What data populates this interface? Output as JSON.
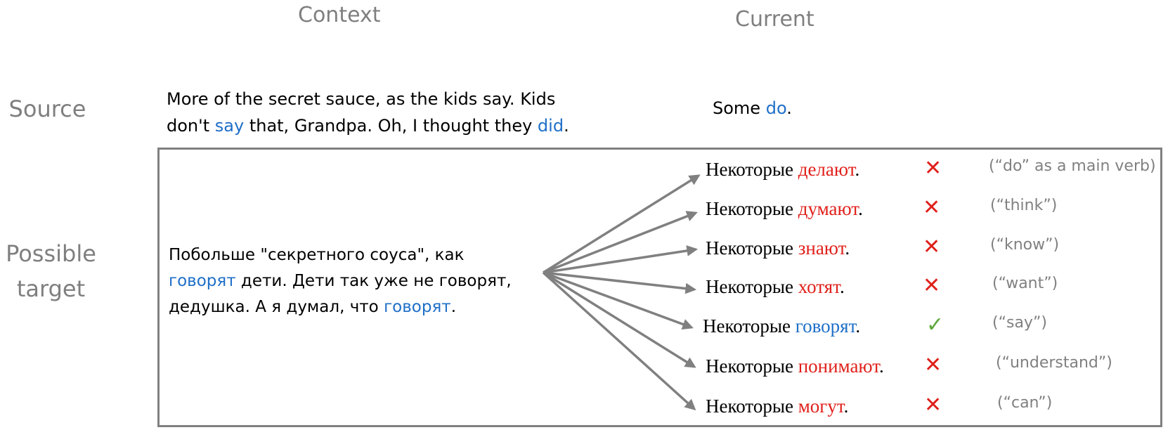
{
  "headers": {
    "context": "Context",
    "current": "Current"
  },
  "rows": {
    "source": "Source",
    "target_line1": "Possible",
    "target_line2": "target"
  },
  "source": {
    "context_line1": "More of the secret sauce, as the kids say. Kids",
    "context_line2_a": "don't ",
    "context_line2_say": "say",
    "context_line2_b": " that, Grandpa. Oh, I thought they ",
    "context_line2_did": "did",
    "context_line2_c": ".",
    "current_a": "Some ",
    "current_do": "do",
    "current_b": "."
  },
  "target_context": {
    "line1": "Побольше \"секретного соуса\", как",
    "line2_blue": "говорят",
    "line2_rest": " дети. Дети так уже не говорят,",
    "line3_a": "дедушка. А я думал, что ",
    "line3_blue": "говорят",
    "line3_b": "."
  },
  "candidates": [
    {
      "prefix": "Некоторые ",
      "verb": "делают",
      "suffix": ".",
      "correct": false,
      "mark": "✕",
      "gloss": "(“do” as a main verb)"
    },
    {
      "prefix": "Некоторые ",
      "verb": "думают",
      "suffix": ".",
      "correct": false,
      "mark": "✕",
      "gloss": "(“think”)"
    },
    {
      "prefix": "Некоторые ",
      "verb": "знают",
      "suffix": ".",
      "correct": false,
      "mark": "✕",
      "gloss": "(“know”)"
    },
    {
      "prefix": "Некоторые ",
      "verb": "хотят",
      "suffix": ".",
      "correct": false,
      "mark": "✕",
      "gloss": "(“want”)"
    },
    {
      "prefix": "Некоторые ",
      "verb": "говорят",
      "suffix": ".",
      "correct": true,
      "mark": "✓",
      "gloss": "(“say”)"
    },
    {
      "prefix": "Некоторые ",
      "verb": "понимают",
      "suffix": ".",
      "correct": false,
      "mark": "✕",
      "gloss": "(“understand”)"
    },
    {
      "prefix": "Некоторые ",
      "verb": "могут",
      "suffix": ".",
      "correct": false,
      "mark": "✕",
      "gloss": "(“can”)"
    }
  ],
  "colors": {
    "highlight_blue": "#1f6fc8",
    "wrong_red": "#e0201b",
    "correct_green": "#5ca73a",
    "gray": "#808080"
  }
}
